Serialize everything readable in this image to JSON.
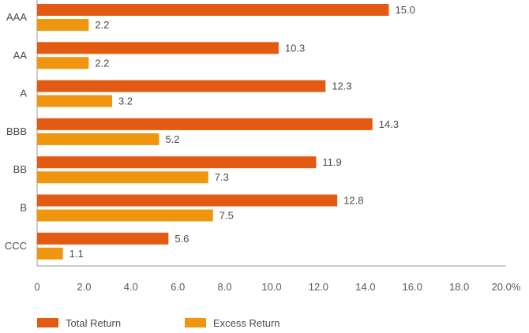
{
  "chart_data": {
    "type": "bar",
    "orientation": "horizontal",
    "categories": [
      "AAA",
      "AA",
      "A",
      "BBB",
      "BB",
      "B",
      "CCC"
    ],
    "series": [
      {
        "name": "Total Return",
        "color": "#E35A12",
        "values": [
          15.0,
          10.3,
          12.3,
          14.3,
          11.9,
          12.8,
          5.6
        ],
        "labels": [
          "15.0",
          "10.3",
          "12.3",
          "14.3",
          "11.9",
          "12.8",
          "5.6"
        ]
      },
      {
        "name": "Excess Return",
        "color": "#F0950E",
        "values": [
          2.2,
          2.2,
          3.2,
          5.2,
          7.3,
          7.5,
          1.1
        ],
        "labels": [
          "2.2",
          "2.2",
          "3.2",
          "5.2",
          "7.3",
          "7.5",
          "1.1"
        ]
      }
    ],
    "xlim": [
      0,
      20
    ],
    "xticks": [
      "0",
      "2.0",
      "4.0",
      "6.0",
      "8.0",
      "10.0",
      "12.0",
      "14.0",
      "16.0",
      "18.0",
      "20.0%"
    ],
    "grid": false,
    "legend_position": "bottom-left",
    "title": "",
    "xlabel": "",
    "ylabel": ""
  }
}
